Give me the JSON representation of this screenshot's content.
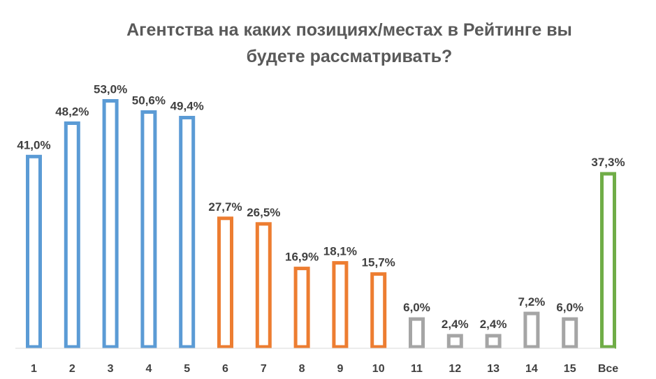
{
  "chart_data": {
    "type": "bar",
    "title_lines": [
      "Агентства на каких позициях/местах в Рейтинге вы",
      "будете рассматривать?"
    ],
    "categories": [
      "1",
      "2",
      "3",
      "4",
      "5",
      "6",
      "7",
      "8",
      "9",
      "10",
      "11",
      "12",
      "13",
      "14",
      "15",
      "Все"
    ],
    "values": [
      41.0,
      48.2,
      53.0,
      50.6,
      49.4,
      27.7,
      26.5,
      16.9,
      18.1,
      15.7,
      6.0,
      2.4,
      2.4,
      7.2,
      6.0,
      37.3
    ],
    "value_labels": [
      "41,0%",
      "48,2%",
      "53,0%",
      "50,6%",
      "49,4%",
      "27,7%",
      "26,5%",
      "16,9%",
      "18,1%",
      "15,7%",
      "6,0%",
      "2,4%",
      "2,4%",
      "7,2%",
      "6,0%",
      "37,3%"
    ],
    "bar_colors": [
      "#5b9bd5",
      "#5b9bd5",
      "#5b9bd5",
      "#5b9bd5",
      "#5b9bd5",
      "#ed7d31",
      "#ed7d31",
      "#ed7d31",
      "#ed7d31",
      "#ed7d31",
      "#a5a5a5",
      "#a5a5a5",
      "#a5a5a5",
      "#a5a5a5",
      "#a5a5a5",
      "#70ad47"
    ],
    "ylim": [
      0,
      60
    ],
    "grid": false,
    "legend": "none",
    "axis_color": "#d9d9d9"
  }
}
